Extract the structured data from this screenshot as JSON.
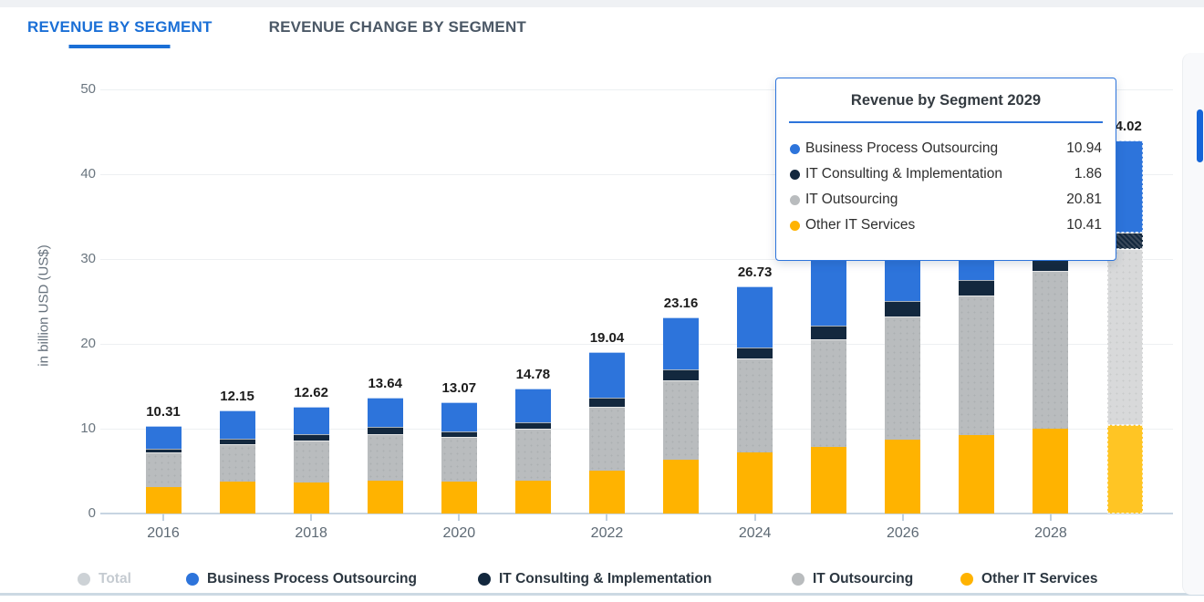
{
  "tabs": {
    "active_label": "REVENUE BY SEGMENT",
    "inactive_label": "REVENUE CHANGE BY SEGMENT"
  },
  "colors": {
    "accent_blue": "#2d74db",
    "navy": "#13283e",
    "gray": "#b9bcbe",
    "orange": "#ffb300",
    "highlight_gray": "#d8d9da",
    "highlight_orange": "#ffc524",
    "tab_active": "#1a6fd6",
    "tab_inactive": "#4b5866",
    "gridline": "#edf0f2",
    "axis_line": "#c7d5e2",
    "total_label": "#1c1c1c",
    "legend_disabled": "#c9ced3",
    "tooltip_border": "#2d74db",
    "scroll_thumb": "#1565d8"
  },
  "tooltip": {
    "title": "Revenue by Segment 2029",
    "rows": [
      {
        "label": "Business Process Outsourcing",
        "value": "10.94",
        "color": "#2d74db"
      },
      {
        "label": "IT Consulting & Implementation",
        "value": "1.86",
        "color": "#13283e"
      },
      {
        "label": "IT Outsourcing",
        "value": "20.81",
        "color": "#b9bcbe"
      },
      {
        "label": "Other IT Services",
        "value": "10.41",
        "color": "#ffb300"
      }
    ]
  },
  "legend": [
    {
      "label": "Total",
      "color": "#cdd2d6",
      "disabled": true,
      "x": 85
    },
    {
      "label": "Business Process Outsourcing",
      "color": "#2d74db",
      "disabled": false,
      "x": 204
    },
    {
      "label": "IT Consulting & Implementation",
      "color": "#13283e",
      "disabled": false,
      "x": 524
    },
    {
      "label": "IT Outsourcing",
      "color": "#b9bcbe",
      "disabled": false,
      "x": 868
    },
    {
      "label": "Other IT Services",
      "color": "#ffb300",
      "disabled": false,
      "x": 1053
    }
  ],
  "chart_data": {
    "type": "bar",
    "stacked": true,
    "title": "Revenue by Segment",
    "ylabel": "in billion USD (US$)",
    "xlabel": "",
    "ylim": [
      0,
      50
    ],
    "yticks": [
      0,
      10,
      20,
      30,
      40,
      50
    ],
    "grid": true,
    "legend_position": "bottom",
    "categories": [
      2016,
      2017,
      2018,
      2019,
      2020,
      2021,
      2022,
      2023,
      2024,
      2025,
      2026,
      2027,
      2028,
      2029
    ],
    "xticks_shown": [
      "2016",
      "2018",
      "2020",
      "2022",
      "2024",
      "2026",
      "2028"
    ],
    "stack_bottom_to_top": [
      "Other IT Services",
      "IT Outsourcing",
      "IT Consulting & Implementation",
      "Business Process Outsourcing"
    ],
    "series": [
      {
        "name": "Business Process Outsourcing",
        "color": "#2d74db",
        "values": [
          2.71,
          3.35,
          3.22,
          3.39,
          3.37,
          4.03,
          5.39,
          6.16,
          7.13,
          7.8,
          7.85,
          8.7,
          9.9,
          10.94
        ]
      },
      {
        "name": "IT Consulting & Implementation",
        "color": "#13283e",
        "values": [
          0.4,
          0.6,
          0.8,
          0.85,
          0.7,
          0.75,
          1.05,
          1.3,
          1.3,
          1.6,
          1.85,
          1.8,
          1.5,
          1.86
        ]
      },
      {
        "name": "IT Outsourcing",
        "color": "#b9bcbe",
        "values": [
          4.1,
          4.4,
          4.9,
          5.5,
          5.2,
          6.1,
          7.55,
          9.35,
          11.1,
          12.65,
          14.5,
          16.45,
          18.6,
          20.81
        ]
      },
      {
        "name": "Other IT Services",
        "color": "#ffb300",
        "values": [
          3.1,
          3.8,
          3.7,
          3.9,
          3.8,
          3.9,
          5.05,
          6.35,
          7.2,
          7.85,
          8.7,
          9.25,
          10.0,
          10.41
        ]
      }
    ],
    "totals": [
      10.31,
      12.15,
      12.62,
      13.64,
      13.07,
      14.78,
      19.04,
      23.16,
      26.73,
      29.9,
      32.9,
      36.2,
      40.0,
      44.02
    ],
    "total_labels_visible": [
      "10.31",
      "12.15",
      "12.62",
      "13.64",
      "13.07",
      "14.78",
      "19.04",
      "23.16",
      "26.73",
      "44.02"
    ],
    "highlighted_year": 2029
  }
}
